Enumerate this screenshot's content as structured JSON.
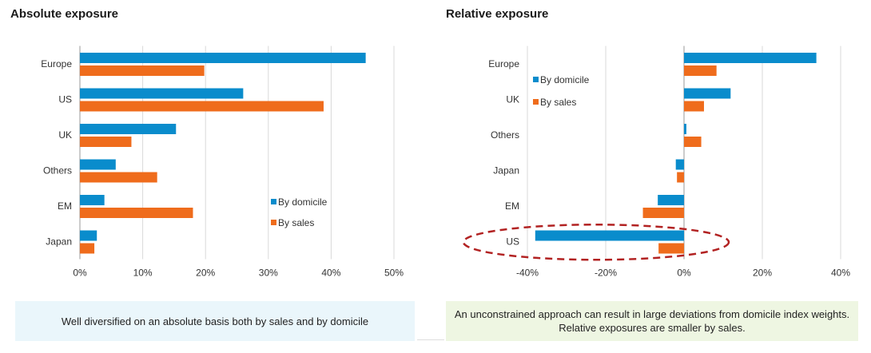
{
  "colors": {
    "domicile": "#0a8ccc",
    "sales": "#ef6c1c",
    "grid": "#d9d9d9",
    "axis": "#9a9a9a",
    "highlight": "#b22222"
  },
  "chart_data": [
    {
      "type": "bar",
      "orientation": "horizontal",
      "title": "Absolute exposure",
      "categories": [
        "Europe",
        "US",
        "UK",
        "Others",
        "EM",
        "Japan"
      ],
      "series": [
        {
          "name": "By domicile",
          "values": [
            45.5,
            26,
            15.3,
            5.7,
            3.9,
            2.7
          ]
        },
        {
          "name": "By sales",
          "values": [
            19.8,
            38.8,
            8.2,
            12.3,
            18,
            2.3
          ]
        }
      ],
      "xlim": [
        0,
        50
      ],
      "ticks": [
        0,
        10,
        20,
        30,
        40,
        50
      ],
      "tick_labels": [
        "0%",
        "10%",
        "20%",
        "30%",
        "40%",
        "50%"
      ],
      "grid": true,
      "legend": "bottom-right"
    },
    {
      "type": "bar",
      "orientation": "horizontal",
      "title": "Relative exposure",
      "categories": [
        "Europe",
        "UK",
        "Others",
        "Japan",
        "EM",
        "US"
      ],
      "series": [
        {
          "name": "By domicile",
          "values": [
            33.8,
            11.9,
            0.6,
            -2.1,
            -6.7,
            -38
          ]
        },
        {
          "name": "By sales",
          "values": [
            8.3,
            5.1,
            4.4,
            -1.8,
            -10.5,
            -6.5
          ]
        }
      ],
      "xlim": [
        -40,
        40
      ],
      "ticks": [
        -40,
        -20,
        0,
        20,
        40
      ],
      "tick_labels": [
        "-40%",
        "-20%",
        "0%",
        "20%",
        "40%"
      ],
      "grid": true,
      "legend": "top-left",
      "highlight": "US"
    }
  ],
  "notes": {
    "left": "Well diversified on an absolute basis both by sales and by domicile",
    "right": "An unconstrained approach can result in large deviations from domicile index weights. Relative exposures are smaller by sales."
  }
}
